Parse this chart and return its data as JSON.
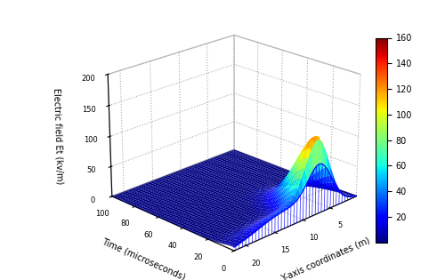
{
  "xlabel": "Time (microseconds)",
  "ylabel": "Y-axis coordinates (m)",
  "zlabel": "Electric field Et (kv/m)",
  "xlim": [
    0,
    100
  ],
  "ylim": [
    0,
    22
  ],
  "zlim": [
    0,
    200
  ],
  "colorbar_min": 0,
  "colorbar_max": 160,
  "colorbar_ticks": [
    20,
    40,
    60,
    80,
    100,
    120,
    140,
    160
  ],
  "peak_y": 7.0,
  "peak_t": 3.0,
  "peak_amplitude": 110.0,
  "sigma_t_rise": 3.0,
  "sigma_t_fall": 15.0,
  "sigma_y": 2.2,
  "hump_y": 13.0,
  "hump_sigma_y": 5.0,
  "hump_sigma_t": 8.0,
  "hump_amp": 28.0,
  "background_color": "#ffffff",
  "figsize": [
    5.0,
    3.15
  ],
  "dpi": 100,
  "elev": 22,
  "azim": 225
}
